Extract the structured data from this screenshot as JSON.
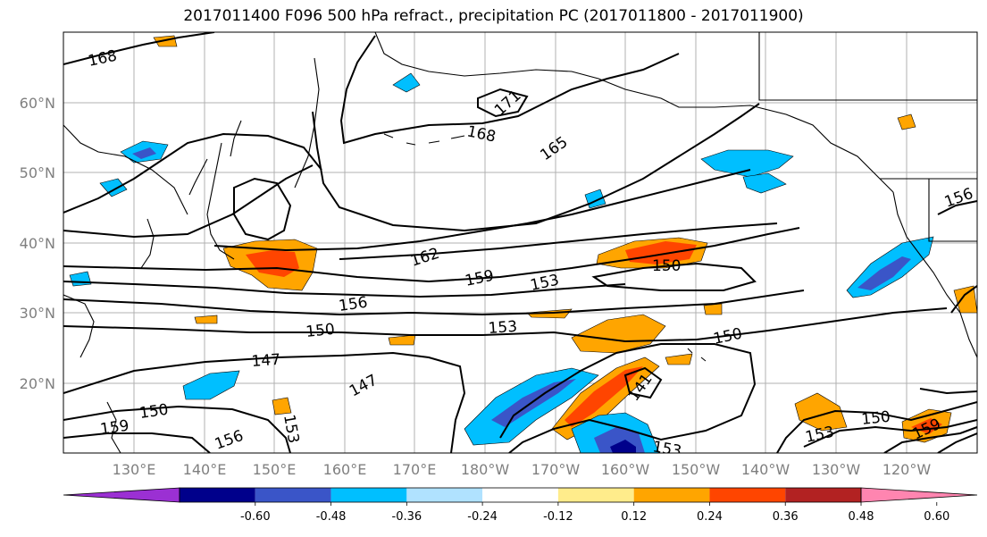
{
  "title": "2017011400 F096 500 hPa refract., precipitation PC (2017011800 - 2017011900)",
  "axes": {
    "lat_labels": [
      "60°N",
      "50°N",
      "40°N",
      "30°N",
      "20°N"
    ],
    "lon_labels": [
      "130°E",
      "140°E",
      "150°E",
      "160°E",
      "170°E",
      "180°W",
      "170°W",
      "160°W",
      "150°W",
      "140°W",
      "130°W",
      "120°W"
    ]
  },
  "colorbar": {
    "colors": [
      "#9b30d3",
      "#00008b",
      "#3a55c8",
      "#00bfff",
      "#b0e2ff",
      "#ffffff",
      "#ffec8b",
      "#ffa500",
      "#ff4500",
      "#b22222",
      "#ff85b0"
    ],
    "tick_labels": [
      "-0.60",
      "-0.48",
      "-0.36",
      "-0.24",
      "-0.12",
      "0.12",
      "0.24",
      "0.36",
      "0.48",
      "0.60"
    ]
  },
  "contour_labels": [
    "168",
    "171",
    "168",
    "165",
    "162",
    "159",
    "153",
    "150",
    "156",
    "150",
    "153",
    "150",
    "147",
    "147",
    "150",
    "153",
    "156",
    "150",
    "153",
    "159",
    "156",
    "159",
    "141",
    "153"
  ]
}
